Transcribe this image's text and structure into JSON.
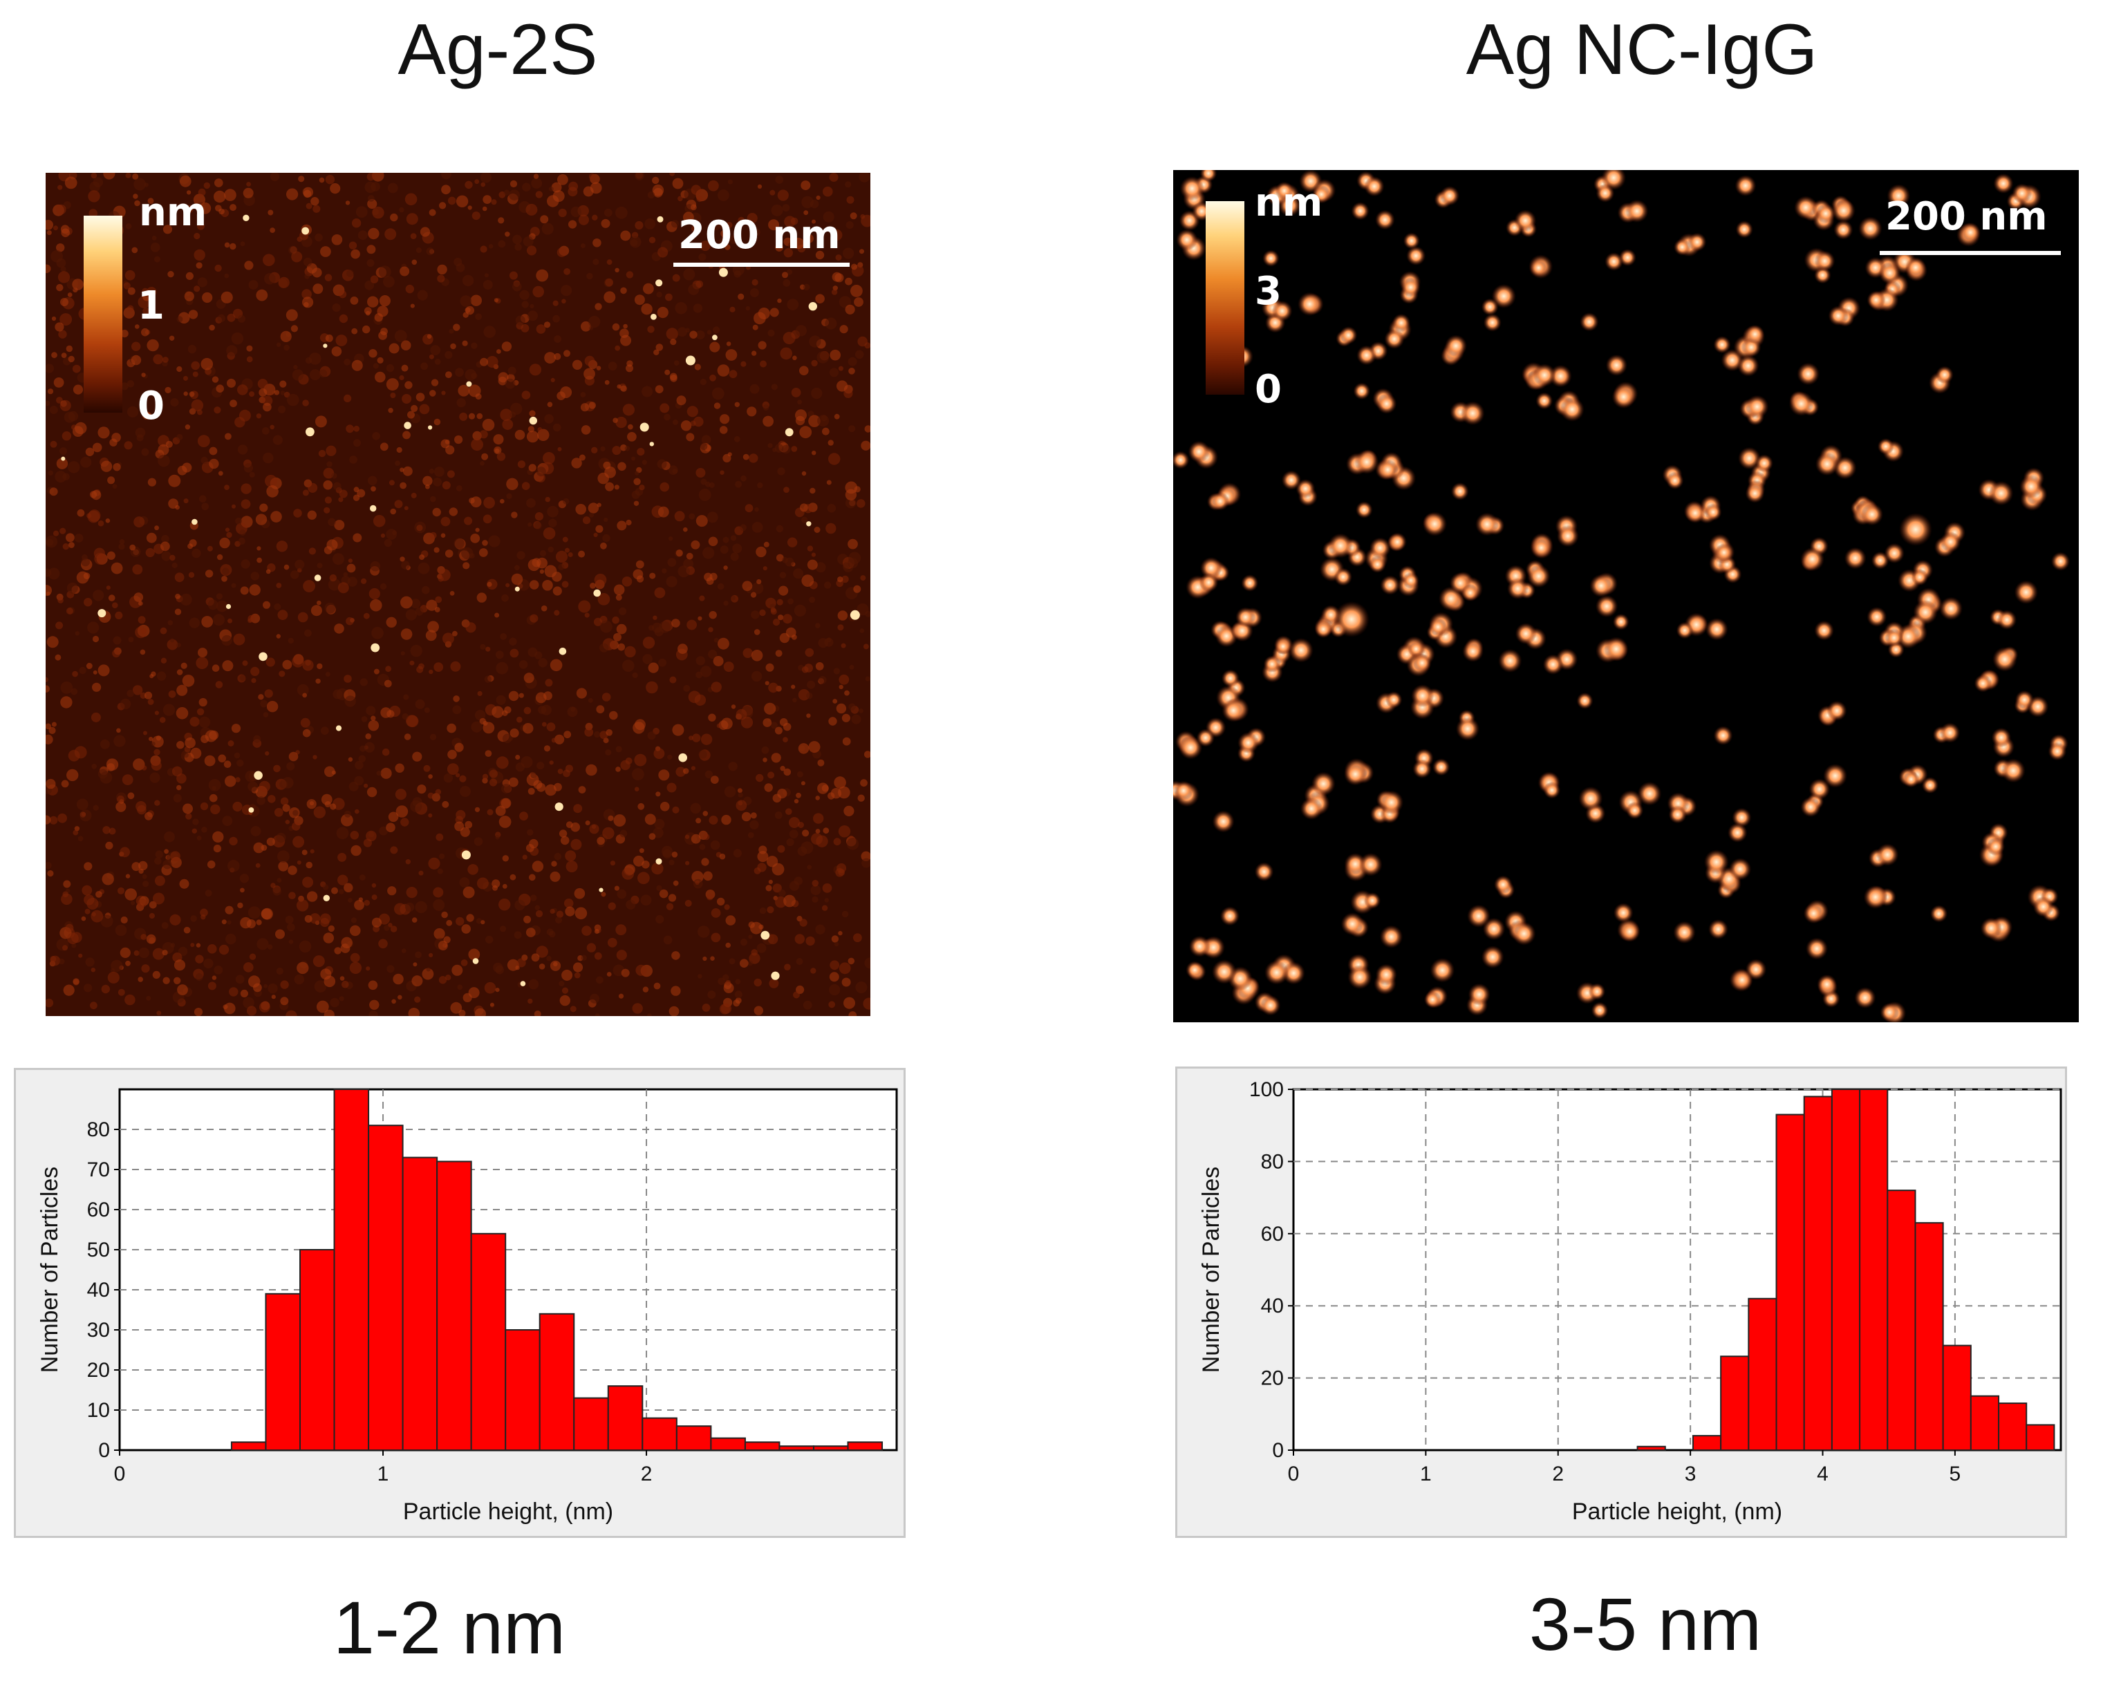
{
  "panels": {
    "left": {
      "title": "Ag-2S",
      "range_label": "1-2 nm",
      "afm": {
        "colorbar_unit": "nm",
        "colorbar_max_label": "1",
        "colorbar_min_label": "0",
        "scale_bar_label": "200 nm"
      }
    },
    "right": {
      "title": "Ag NC-IgG",
      "range_label": "3-5 nm",
      "afm": {
        "colorbar_unit": "nm",
        "colorbar_max_label": "3",
        "colorbar_min_label": "0",
        "scale_bar_label": "200 nm"
      }
    }
  },
  "colors": {
    "bar_fill": "#ff0000",
    "bar_stroke": "#222222",
    "plot_bg": "#ffffff",
    "grid": "#888888",
    "afm_left_bg": "#3c0e02",
    "afm_right_bg": "#000000",
    "particle": "#ff8a4a"
  },
  "chart_data": [
    {
      "type": "bar",
      "title": "Ag-2S",
      "xlabel": "Particle height, (nm)",
      "ylabel": "Number  of Particles",
      "xlim": [
        0,
        2.95
      ],
      "ylim": [
        0,
        90
      ],
      "xticks": [
        0,
        1,
        2
      ],
      "yticks": [
        0,
        10,
        20,
        30,
        40,
        50,
        60,
        70,
        80
      ],
      "bin_width": 0.13,
      "bin_starts": [
        0.425,
        0.555,
        0.685,
        0.815,
        0.945,
        1.075,
        1.205,
        1.335,
        1.465,
        1.595,
        1.725,
        1.855,
        1.985,
        2.115,
        2.245,
        2.375,
        2.505,
        2.635,
        2.765
      ],
      "values": [
        2,
        39,
        50,
        90,
        81,
        73,
        72,
        54,
        30,
        34,
        13,
        16,
        8,
        6,
        3,
        2,
        1,
        1,
        2
      ]
    },
    {
      "type": "bar",
      "title": "Ag NC-IgG",
      "xlabel": "Particle height, (nm)",
      "ylabel": "Number  of Particles",
      "xlim": [
        0,
        5.8
      ],
      "ylim": [
        0,
        100
      ],
      "xticks": [
        0,
        1,
        2,
        3,
        4,
        5
      ],
      "yticks": [
        0,
        20,
        40,
        60,
        80,
        100
      ],
      "bin_width": 0.21,
      "bin_starts": [
        2.6,
        2.81,
        3.02,
        3.23,
        3.44,
        3.65,
        3.86,
        4.07,
        4.28,
        4.49,
        4.7,
        4.91,
        5.12,
        5.33,
        5.54
      ],
      "values": [
        1,
        0,
        4,
        26,
        42,
        93,
        98,
        100,
        101,
        72,
        63,
        29,
        15,
        13,
        7
      ]
    }
  ]
}
